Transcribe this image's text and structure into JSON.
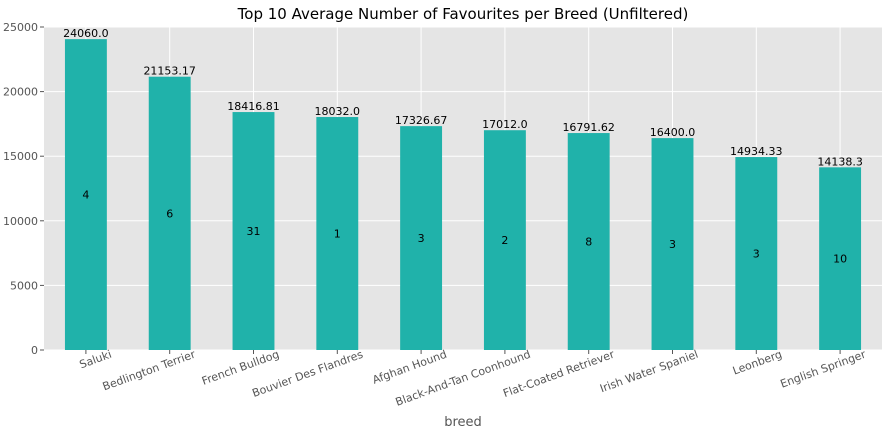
{
  "chart_data": {
    "type": "bar",
    "title": "Top 10 Average Number of Favourites per Breed (Unfiltered)",
    "xlabel": "breed",
    "ylabel": "",
    "ylim": [
      0,
      25000
    ],
    "yticks": [
      0,
      5000,
      10000,
      15000,
      20000,
      25000
    ],
    "grid": true,
    "categories": [
      "Saluki",
      "Bedlington Terrier",
      "French Bulldog",
      "Bouvier Des Flandres",
      "Afghan Hound",
      "Black-And-Tan Coonhound",
      "Flat-Coated Retriever",
      "Irish Water Spaniel",
      "Leonberg",
      "English Springer"
    ],
    "values": [
      24060.0,
      21153.17,
      18416.81,
      18032.0,
      17326.67,
      17012.0,
      16791.62,
      16400.0,
      14934.33,
      14138.3
    ],
    "value_labels": [
      "24060.0",
      "21153.17",
      "18416.81",
      "18032.0",
      "17326.67",
      "17012.0",
      "16791.62",
      "16400.0",
      "14934.33",
      "14138.3"
    ],
    "count_labels": [
      "4",
      "6",
      "31",
      "1",
      "3",
      "2",
      "8",
      "3",
      "3",
      "10"
    ],
    "bar_color": "#20b2aa",
    "background_color": "#e5e5e5",
    "grid_color": "#ffffff"
  }
}
